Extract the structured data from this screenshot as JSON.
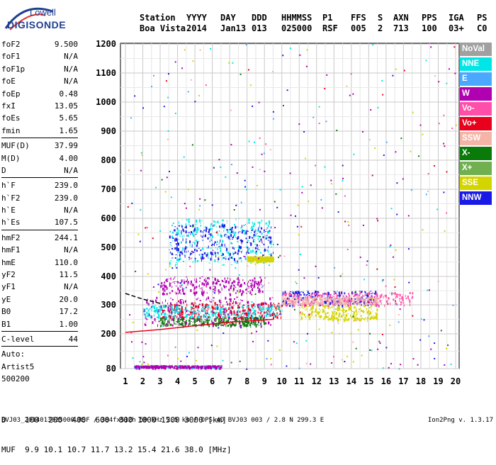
{
  "logo": {
    "line1": "Lowell",
    "line2": "DIGISONDE"
  },
  "header": {
    "cols": [
      {
        "key": "Station",
        "val": "Boa Vista"
      },
      {
        "key": "YYYY",
        "val": "2014"
      },
      {
        "key": "DAY",
        "val": "Jan13"
      },
      {
        "key": "DDD",
        "val": "013"
      },
      {
        "key": "HHMMSS",
        "val": "025000"
      },
      {
        "key": "P1",
        "val": "RSF"
      },
      {
        "key": "FFS",
        "val": "005"
      },
      {
        "key": "S",
        "val": "2"
      },
      {
        "key": "AXN",
        "val": "713"
      },
      {
        "key": "PPS",
        "val": "100"
      },
      {
        "key": "IGA",
        "val": "03+"
      },
      {
        "key": "PS",
        "val": "C0"
      }
    ]
  },
  "params": {
    "group1": [
      {
        "label": "foF2",
        "value": "9.500"
      },
      {
        "label": "foF1",
        "value": "N/A"
      },
      {
        "label": "foF1p",
        "value": "N/A"
      },
      {
        "label": "foE",
        "value": "N/A"
      },
      {
        "label": "foEp",
        "value": "0.48"
      },
      {
        "label": "fxI",
        "value": "13.05"
      },
      {
        "label": "foEs",
        "value": "5.65"
      },
      {
        "label": "fmin",
        "value": "1.65"
      }
    ],
    "group2": [
      {
        "label": "MUF(D)",
        "value": "37.99"
      },
      {
        "label": "M(D)",
        "value": "4.00"
      },
      {
        "label": "D",
        "value": "N/A"
      }
    ],
    "group3": [
      {
        "label": "h`F",
        "value": "239.0"
      },
      {
        "label": "h`F2",
        "value": "239.0"
      },
      {
        "label": "h`E",
        "value": "N/A"
      },
      {
        "label": "h`Es",
        "value": "107.5"
      }
    ],
    "group4": [
      {
        "label": "hmF2",
        "value": "244.1"
      },
      {
        "label": "hmF1",
        "value": "N/A"
      },
      {
        "label": "hmE",
        "value": "110.0"
      },
      {
        "label": "yF2",
        "value": "11.5"
      },
      {
        "label": "yF1",
        "value": "N/A"
      },
      {
        "label": "yE",
        "value": "20.0"
      },
      {
        "label": "B0",
        "value": "17.2"
      },
      {
        "label": "B1",
        "value": "1.00"
      }
    ],
    "clevel": {
      "label": "C-level",
      "value": "44"
    },
    "auto": {
      "line1": "Auto:",
      "line2": "Artist5",
      "line3": "500200"
    }
  },
  "legend": [
    {
      "label": "NoVal",
      "color": "#a0a0a0"
    },
    {
      "label": "NNE",
      "color": "#00e6e6"
    },
    {
      "label": "E",
      "color": "#4aa8ff"
    },
    {
      "label": "W",
      "color": "#b000b0"
    },
    {
      "label": "Vo-",
      "color": "#ff4fa8"
    },
    {
      "label": "Vo+",
      "color": "#e8001c"
    },
    {
      "label": "SSW",
      "color": "#f4b4a8"
    },
    {
      "label": "X-",
      "color": "#0a7a0a"
    },
    {
      "label": "X+",
      "color": "#70b050"
    },
    {
      "label": "SSE",
      "color": "#d4d400"
    },
    {
      "label": "NNW",
      "color": "#1a1ae6"
    }
  ],
  "bottom": {
    "d_row": {
      "label": "D",
      "values": [
        "100",
        "200",
        "400",
        "600",
        "800",
        "1000",
        "1500",
        "3000"
      ],
      "unit": "[km]"
    },
    "muf_row": {
      "label": "MUF",
      "values": [
        "9.9",
        "10.1",
        "10.7",
        "11.7",
        "13.2",
        "15.4",
        "21.6",
        "38.0"
      ],
      "unit": "[MHz]"
    }
  },
  "footer": {
    "text": "BVJ03_2014013025000.RSF / 384fx512h 50 kHz 2.5 km / DPS-4D BVJ03 003 / 2.8 N 299.3 E",
    "version": "Ion2Png v. 1.3.17"
  },
  "chart_data": {
    "type": "scatter",
    "xlim": [
      1,
      20
    ],
    "ylim": [
      80,
      1200
    ],
    "x_ticks": [
      "1",
      "2",
      "3",
      "4",
      "5",
      "6",
      "7",
      "8",
      "9",
      "10",
      "11",
      "12",
      "13",
      "14",
      "15",
      "16",
      "17",
      "18",
      "19",
      "20"
    ],
    "y_ticks": [
      "80",
      "200",
      "300",
      "400",
      "500",
      "600",
      "700",
      "800",
      "900",
      "1000",
      "1100",
      "1200"
    ],
    "y_scale": "log-like",
    "grid": true,
    "traces": [
      {
        "color": "#e8001c",
        "points": [
          [
            1.0,
            205
          ],
          [
            3.0,
            215
          ],
          [
            5.0,
            228
          ],
          [
            7.0,
            240
          ],
          [
            9.5,
            250
          ]
        ]
      },
      {
        "color": "#000000",
        "points": [
          [
            1.0,
            340
          ],
          [
            2.0,
            320
          ],
          [
            3.0,
            305
          ]
        ]
      }
    ],
    "clusters": [
      {
        "color": "#b000b0",
        "x": [
          2.0,
          9.5
        ],
        "y": [
          230,
          330
        ]
      },
      {
        "color": "#e8001c",
        "x": [
          3.0,
          10.0
        ],
        "y": [
          255,
          310
        ]
      },
      {
        "color": "#00e6e6",
        "x": [
          3.5,
          9.5
        ],
        "y": [
          440,
          600
        ]
      },
      {
        "color": "#1a1ae6",
        "x": [
          3.5,
          9.5
        ],
        "y": [
          460,
          580
        ]
      },
      {
        "color": "#b000b0",
        "x": [
          3.0,
          9.0
        ],
        "y": [
          340,
          400
        ]
      },
      {
        "color": "#1a1ae6",
        "x": [
          10.0,
          15.5
        ],
        "y": [
          300,
          350
        ]
      },
      {
        "color": "#d4d400",
        "x": [
          11.0,
          15.5
        ],
        "y": [
          250,
          300
        ]
      },
      {
        "color": "#ff4fa8",
        "x": [
          10.0,
          17.5
        ],
        "y": [
          300,
          345
        ]
      },
      {
        "color": "#f4b4a8",
        "x": [
          10.0,
          15.5
        ],
        "y": [
          305,
          330
        ]
      },
      {
        "color": "#4aa8ff",
        "x": [
          1.5,
          6.5
        ],
        "y": [
          85,
          92
        ]
      },
      {
        "color": "#b000b0",
        "x": [
          1.5,
          6.5
        ],
        "y": [
          85,
          92
        ]
      },
      {
        "color": "#d4d400",
        "x": [
          8.0,
          9.5
        ],
        "y": [
          455,
          470
        ]
      },
      {
        "color": "#0a7a0a",
        "x": [
          3.0,
          9.0
        ],
        "y": [
          230,
          260
        ]
      },
      {
        "color": "#00e6e6",
        "x": [
          2.0,
          10.0
        ],
        "y": [
          260,
          300
        ]
      }
    ]
  }
}
